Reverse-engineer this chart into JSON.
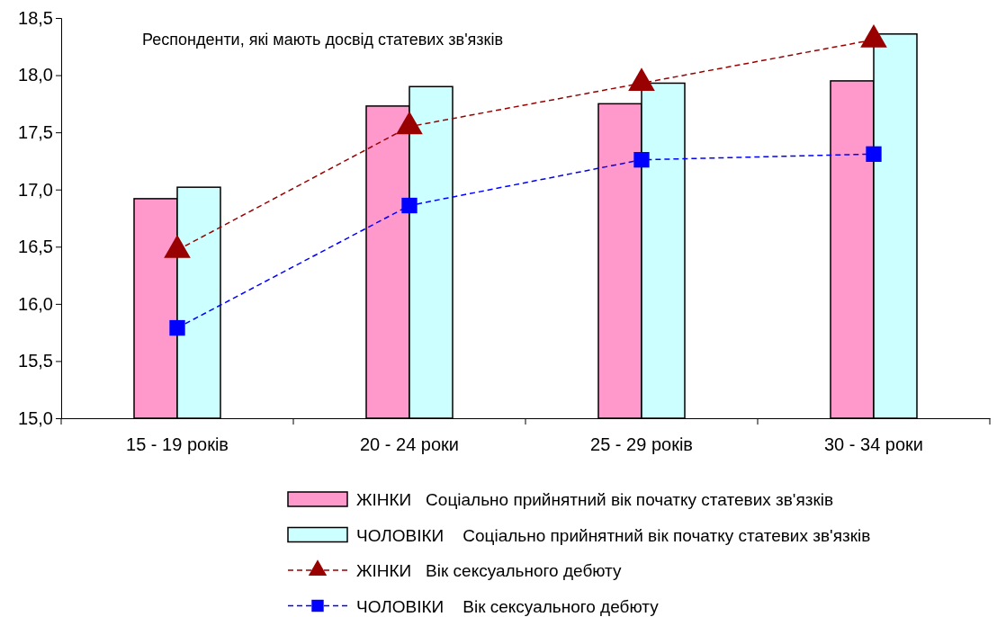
{
  "chart_data": {
    "type": "bar",
    "categories": [
      "15 - 19 років",
      "20 - 24 роки",
      "25 - 29 років",
      "30 - 34 роки"
    ],
    "ylim": [
      15,
      18.5
    ],
    "yticks": [
      {
        "value": 15,
        "label": "15,0"
      },
      {
        "value": 15.5,
        "label": "15,5"
      },
      {
        "value": 16,
        "label": "16,0"
      },
      {
        "value": 16.5,
        "label": "16,5"
      },
      {
        "value": 17,
        "label": "17,0"
      },
      {
        "value": 17.5,
        "label": "17,5"
      },
      {
        "value": 18,
        "label": "18,0"
      },
      {
        "value": 18.5,
        "label": "18,5"
      }
    ],
    "annotations": [
      "Респонденти, які мають досвід статевих зв'язків"
    ],
    "legend": "bottom",
    "grid": false,
    "series": [
      {
        "name": "ЖІНКИ   Соціально прийнятний вік початку статевих зв'язків",
        "color": "#ff99cc",
        "values": [
          16.92,
          17.73,
          17.75,
          17.95
        ]
      },
      {
        "name": "ЧОЛОВІКИ    Соціально прийнятний вік початку статевих зв'язків",
        "color": "#ccffff",
        "values": [
          17.02,
          17.9,
          17.93,
          18.36
        ]
      },
      {
        "name": "ЖІНКИ   Вік сексуального дебюту",
        "type": "line",
        "color": "#990000",
        "marker": "triangle",
        "line_style": "dashed",
        "values": [
          16.47,
          17.55,
          17.93,
          18.31
        ]
      },
      {
        "name": "ЧОЛОВІКИ    Вік сексуального дебюту",
        "type": "line",
        "color": "#0000ff",
        "marker": "square",
        "line_style": "dashed",
        "values": [
          15.79,
          16.86,
          17.26,
          17.31
        ]
      }
    ]
  }
}
